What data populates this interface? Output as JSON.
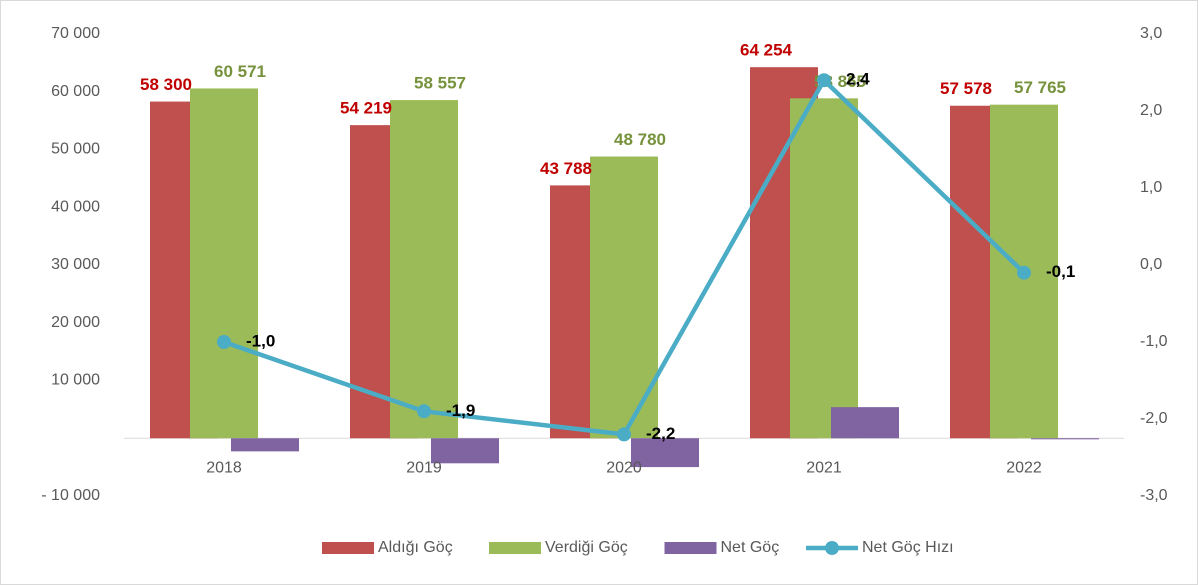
{
  "chart_data": {
    "type": "bar",
    "categories": [
      "2018",
      "2019",
      "2020",
      "2021",
      "2022"
    ],
    "series": [
      {
        "name": "Aldığı Göç",
        "type": "bar",
        "color": "#c0504d",
        "label_color": "#c00000",
        "values": [
          58300,
          54219,
          43788,
          64254,
          57578
        ],
        "value_labels": [
          "58 300",
          "54 219",
          "43 788",
          "64 254",
          "57 578"
        ]
      },
      {
        "name": "Verdiği Göç",
        "type": "bar",
        "color": "#9bbb59",
        "label_color": "#76923c",
        "values": [
          60571,
          58557,
          48780,
          58865,
          57765
        ],
        "value_labels": [
          "60 571",
          "58 557",
          "48 780",
          "58 865",
          "57 765"
        ]
      },
      {
        "name": "Net Göç",
        "type": "bar",
        "color": "#8064a2",
        "values": [
          -2271,
          -4338,
          -4992,
          5389,
          -187
        ]
      },
      {
        "name": "Net Göç Hızı",
        "type": "line",
        "axis": "y2",
        "color": "#4bacc6",
        "label_color": "#000000",
        "values": [
          -1.0,
          -1.9,
          -2.2,
          2.4,
          -0.1
        ],
        "value_labels": [
          "-1,0",
          "-1,9",
          "-2,2",
          "2,4",
          "-0,1"
        ]
      }
    ],
    "ylim": [
      -10000,
      70000
    ],
    "yticks": [
      {
        "value": -10000,
        "label": "- 10 000"
      },
      {
        "value": 10000,
        "label": "10 000"
      },
      {
        "value": 20000,
        "label": "20 000"
      },
      {
        "value": 30000,
        "label": "30 000"
      },
      {
        "value": 40000,
        "label": "40 000"
      },
      {
        "value": 50000,
        "label": "50 000"
      },
      {
        "value": 60000,
        "label": "60 000"
      },
      {
        "value": 70000,
        "label": "70 000"
      }
    ],
    "y2lim": [
      -3,
      3
    ],
    "y2ticks": [
      {
        "value": -3,
        "label": "-3,0"
      },
      {
        "value": -2,
        "label": "-2,0"
      },
      {
        "value": -1,
        "label": "-1,0"
      },
      {
        "value": 0,
        "label": "0,0"
      },
      {
        "value": 1,
        "label": "1,0"
      },
      {
        "value": 2,
        "label": "2,0"
      },
      {
        "value": 3,
        "label": "3,0"
      }
    ],
    "legend": "bottom"
  }
}
